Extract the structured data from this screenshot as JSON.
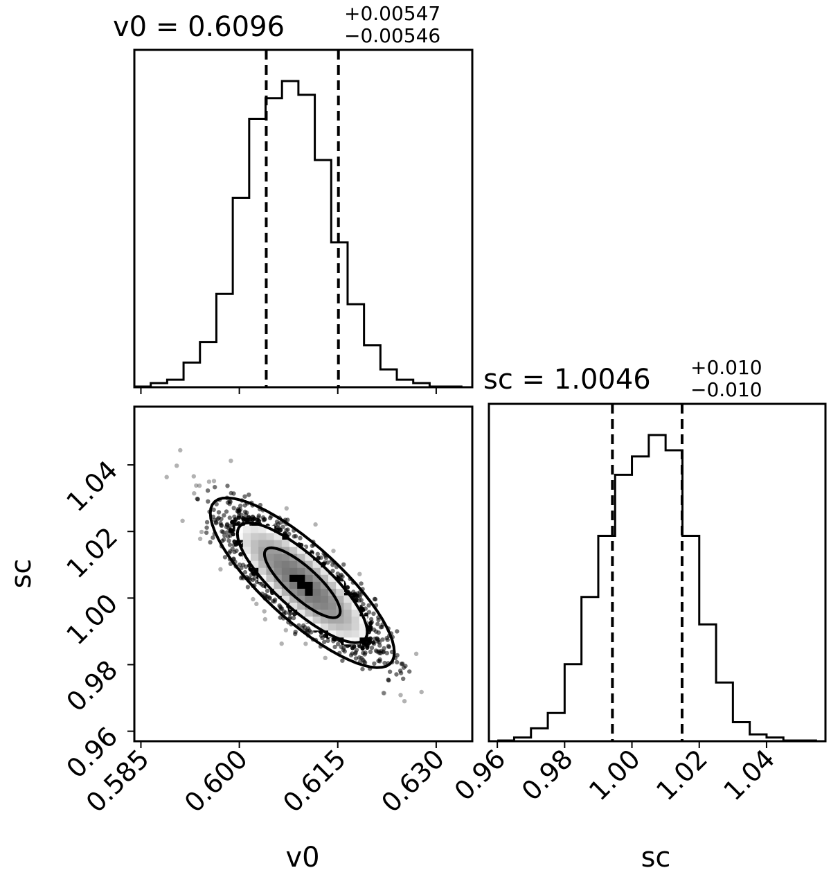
{
  "chart_data": [
    {
      "type": "histogram",
      "panel": "v0 marginal",
      "title_lhs": "v0 = 0.6096",
      "title_upper": "+0.00547",
      "title_lower": "−0.00546",
      "x_range": [
        0.584,
        0.6355
      ],
      "bin_edges": [
        0.584,
        0.5865,
        0.589,
        0.5915,
        0.594,
        0.5965,
        0.599,
        0.6015,
        0.604,
        0.6065,
        0.609,
        0.6115,
        0.614,
        0.6165,
        0.619,
        0.6215,
        0.624,
        0.6265,
        0.629,
        0.6315,
        0.634
      ],
      "counts": [
        0,
        1,
        2,
        7,
        13,
        27,
        55,
        78,
        84,
        89,
        85,
        66,
        42,
        24,
        12,
        5,
        2,
        1,
        0,
        0
      ],
      "quantile_lines": [
        0.6041,
        0.6151
      ],
      "xticks": [
        0.585,
        0.6,
        0.615,
        0.63
      ],
      "xtick_labels": [],
      "yticks_shown": false
    },
    {
      "type": "scatter-density-contour",
      "panel": "v0 vs sc",
      "xlabel": "v0",
      "ylabel": "sc",
      "x_range": [
        0.584,
        0.6355
      ],
      "y_range": [
        0.957,
        1.0575
      ],
      "xticks": [
        0.585,
        0.6,
        0.615,
        0.63
      ],
      "xtick_labels": [
        "0.585",
        "0.600",
        "0.615",
        "0.630"
      ],
      "yticks": [
        0.96,
        0.98,
        1.0,
        1.02,
        1.04
      ],
      "ytick_labels": [
        "0.96",
        "0.98",
        "1.00",
        "1.02",
        "1.04"
      ],
      "correlation": "negative",
      "center": [
        0.6096,
        1.0046
      ],
      "sigma": [
        0.0055,
        0.01
      ],
      "contour_levels_sigma": [
        0.5,
        1.0,
        1.5
      ]
    },
    {
      "type": "histogram",
      "panel": "sc marginal",
      "xlabel": "sc",
      "title_lhs": "sc = 1.0046",
      "title_upper": "+0.010",
      "title_lower": "−0.010",
      "x_range": [
        0.9575,
        1.0575
      ],
      "bin_edges": [
        0.96,
        0.965,
        0.97,
        0.975,
        0.98,
        0.985,
        0.99,
        0.995,
        1.0,
        1.005,
        1.01,
        1.015,
        1.02,
        1.025,
        1.03,
        1.035,
        1.04,
        1.045,
        1.05,
        1.055
      ],
      "counts": [
        0,
        1,
        4,
        9,
        25,
        47,
        67,
        87,
        93,
        100,
        95,
        67,
        38,
        19,
        6,
        2,
        1,
        0,
        0
      ],
      "quantile_lines": [
        0.9942,
        1.0149
      ],
      "xticks": [
        0.96,
        0.98,
        1.0,
        1.02,
        1.04
      ],
      "xtick_labels": [
        "0.96",
        "0.98",
        "1.00",
        "1.02",
        "1.04"
      ],
      "yticks_shown": false
    }
  ],
  "colors": {
    "ink": "#000000",
    "background": "#ffffff"
  }
}
